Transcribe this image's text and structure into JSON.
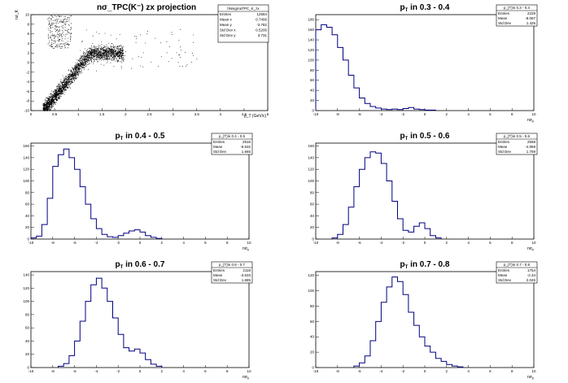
{
  "pads": [
    {
      "id": "scatter",
      "title": "nσ_TPC(K⁻) zx projection",
      "title_main": "nσ",
      "title_sub": "TPC",
      "title_rest": "(K⁻) zx projection",
      "xlabel": "p_T (GeV/c)",
      "ylabel": "nσ_K",
      "stats": {
        "name": "hNsigmaTPC_K_zx",
        "rows": [
          [
            "Entries",
            "12584"
          ],
          [
            "Mean x",
            "0.7406"
          ],
          [
            "Mean y",
            "-3.782"
          ],
          [
            "Std Dev x",
            "0.5206"
          ],
          [
            "Std Dev y",
            "3.731"
          ]
        ]
      }
    },
    {
      "id": "h1",
      "title_prefix": "p",
      "title_sub": "T",
      "title_rest": " in 0.3 - 0.4",
      "stats": {
        "name": "p_{T}in 0.3 - 0.4",
        "rows": [
          [
            "Entries",
            "2229"
          ],
          [
            "Mean",
            "-8.067"
          ],
          [
            "Std Dev",
            "1.426"
          ]
        ]
      }
    },
    {
      "id": "h2",
      "title_prefix": "p",
      "title_sub": "T",
      "title_rest": " in 0.4 - 0.5",
      "stats": {
        "name": "p_{T}in 0.4 - 0.5",
        "rows": [
          [
            "Entries",
            "2916"
          ],
          [
            "Mean",
            "-6.632"
          ],
          [
            "Std Dev",
            "1.665"
          ]
        ]
      }
    },
    {
      "id": "h3",
      "title_prefix": "p",
      "title_sub": "T",
      "title_rest": " in 0.5 - 0.6",
      "stats": {
        "name": "p_{T}in 0.5 - 0.6",
        "rows": [
          [
            "Entries",
            "2568"
          ],
          [
            "Mean",
            "-4.959"
          ],
          [
            "Std Dev",
            "1.759"
          ]
        ]
      }
    },
    {
      "id": "h4",
      "title_prefix": "p",
      "title_sub": "T",
      "title_rest": " in 0.6 - 0.7",
      "stats": {
        "name": "p_{T}in 0.6 - 0.7",
        "rows": [
          [
            "Entries",
            "2118"
          ],
          [
            "Mean",
            "-3.533"
          ],
          [
            "Std Dev",
            "1.685"
          ]
        ]
      }
    },
    {
      "id": "h5",
      "title_prefix": "p",
      "title_sub": "T",
      "title_rest": " in 0.7 - 0.8",
      "stats": {
        "name": "p_{T}in 0.7 - 0.8",
        "rows": [
          [
            "Entries",
            "1754"
          ],
          [
            "Mean",
            "-2.34"
          ],
          [
            "Std Dev",
            "2.045"
          ]
        ]
      }
    }
  ],
  "chart_data": [
    {
      "type": "scatter",
      "title": "nσ_TPC(K⁻) zx projection",
      "xlabel": "p_T (GeV/c)",
      "ylabel": "nσ_K",
      "xlim": [
        0,
        5
      ],
      "ylim": [
        -10,
        10
      ],
      "x_ticks": [
        0,
        0.5,
        1,
        1.5,
        2,
        2.5,
        3,
        3.5,
        4,
        4.5,
        5
      ],
      "y_ticks": [
        -10,
        -8,
        -6,
        -4,
        -2,
        0,
        2,
        4,
        6,
        8,
        10
      ],
      "band": {
        "note": "dense kaon band rising from (0.3,-9) to (1.5,0); proton-like cluster near p_T 0.4-0.8 at 4-10"
      },
      "legend": "top-right"
    },
    {
      "type": "bar",
      "title": "p_T in 0.3 - 0.4",
      "xlim": [
        -10,
        10
      ],
      "ylim": [
        0,
        190
      ],
      "x": [
        -9.75,
        -9.25,
        -8.75,
        -8.25,
        -7.75,
        -7.25,
        -6.75,
        -6.25,
        -5.75,
        -5.25,
        -4.75,
        -4.25,
        -3.75,
        -3.25,
        -2.75,
        -2.25,
        -1.75,
        -1.25,
        -0.75,
        -0.25,
        0.25,
        0.75
      ],
      "values": [
        160,
        170,
        165,
        150,
        125,
        100,
        70,
        45,
        25,
        14,
        8,
        5,
        3,
        2,
        3,
        2,
        4,
        6,
        3,
        2,
        1,
        1
      ]
    },
    {
      "type": "bar",
      "title": "p_T in 0.4 - 0.5",
      "xlim": [
        -10,
        10
      ],
      "ylim": [
        0,
        165
      ],
      "x": [
        -9.75,
        -9.25,
        -8.75,
        -8.25,
        -7.75,
        -7.25,
        -6.75,
        -6.25,
        -5.75,
        -5.25,
        -4.75,
        -4.25,
        -3.75,
        -3.25,
        -2.75,
        -2.25,
        -1.75,
        -1.25,
        -0.75,
        -0.25,
        0.25,
        0.75,
        1.25,
        1.75
      ],
      "values": [
        2,
        5,
        25,
        70,
        125,
        145,
        155,
        140,
        120,
        90,
        60,
        35,
        18,
        8,
        4,
        3,
        6,
        10,
        14,
        16,
        12,
        6,
        3,
        1
      ]
    },
    {
      "type": "bar",
      "title": "p_T in 0.5 - 0.6",
      "xlim": [
        -10,
        10
      ],
      "ylim": [
        0,
        165
      ],
      "x": [
        -8.25,
        -7.75,
        -7.25,
        -6.75,
        -6.25,
        -5.75,
        -5.25,
        -4.75,
        -4.25,
        -3.75,
        -3.25,
        -2.75,
        -2.25,
        -1.75,
        -1.25,
        -0.75,
        -0.25,
        0.25,
        0.75,
        1.25
      ],
      "values": [
        2,
        8,
        25,
        55,
        90,
        120,
        140,
        150,
        148,
        130,
        100,
        65,
        35,
        15,
        12,
        22,
        28,
        18,
        6,
        2
      ]
    },
    {
      "type": "bar",
      "title": "p_T in 0.6 - 0.7",
      "xlim": [
        -10,
        10
      ],
      "ylim": [
        0,
        145
      ],
      "x": [
        -7.25,
        -6.75,
        -6.25,
        -5.75,
        -5.25,
        -4.75,
        -4.25,
        -3.75,
        -3.25,
        -2.75,
        -2.25,
        -1.75,
        -1.25,
        -0.75,
        -0.25,
        0.25,
        0.75,
        1.25,
        1.75
      ],
      "values": [
        2,
        6,
        18,
        40,
        70,
        100,
        125,
        135,
        120,
        100,
        75,
        50,
        30,
        25,
        28,
        22,
        12,
        5,
        2
      ]
    },
    {
      "type": "bar",
      "title": "p_T in 0.7 - 0.8",
      "xlim": [
        -10,
        10
      ],
      "ylim": [
        0,
        125
      ],
      "x": [
        -6.25,
        -5.75,
        -5.25,
        -4.75,
        -4.25,
        -3.75,
        -3.25,
        -2.75,
        -2.25,
        -1.75,
        -1.25,
        -0.75,
        -0.25,
        0.25,
        0.75,
        1.25,
        1.75,
        2.25,
        2.75,
        3.25
      ],
      "values": [
        2,
        6,
        15,
        35,
        60,
        85,
        105,
        118,
        112,
        95,
        72,
        55,
        40,
        28,
        20,
        12,
        8,
        4,
        2,
        1
      ]
    }
  ]
}
